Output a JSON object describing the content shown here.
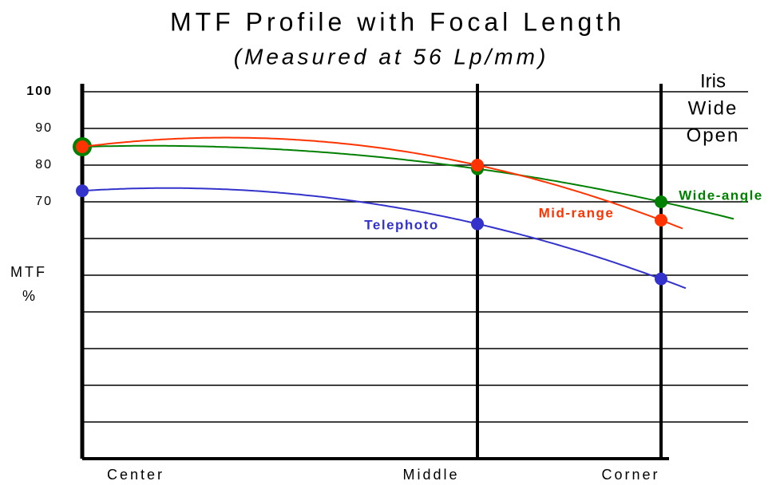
{
  "chart_data": {
    "type": "line",
    "title": "MTF Profile with Focal Length",
    "subtitle": "(Measured at 56 Lp/mm)",
    "ylabel": [
      "MTF",
      "%"
    ],
    "annotation": [
      "Iris",
      "Wide",
      "Open"
    ],
    "categories": [
      "Center",
      "Middle",
      "Corner"
    ],
    "ylim": [
      0,
      100
    ],
    "yticks": [
      70,
      80,
      90,
      100
    ],
    "minor_yticks": [
      10,
      20,
      30,
      40,
      50,
      60
    ],
    "grid": true,
    "series": [
      {
        "name": "Telephoto",
        "color": "#3333cc",
        "values": [
          73,
          64,
          49
        ]
      },
      {
        "name": "Wide-angle",
        "color": "#008000",
        "values": [
          85,
          79,
          70
        ]
      },
      {
        "name": "Mid-range",
        "color": "#ff3300",
        "values": [
          85,
          80,
          65
        ]
      }
    ]
  }
}
